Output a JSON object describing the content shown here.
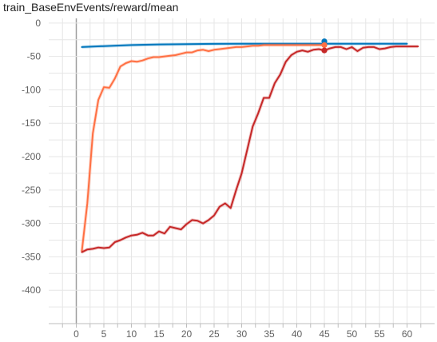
{
  "chart_data": {
    "type": "line",
    "title": "train_BaseEnvEvents/reward/mean",
    "xlabel": "",
    "ylabel": "",
    "xlim": [
      -5,
      65
    ],
    "ylim": [
      -450,
      7
    ],
    "x_ticks": [
      "0",
      "5",
      "10",
      "15",
      "20",
      "25",
      "30",
      "35",
      "40",
      "45",
      "50",
      "55",
      "60"
    ],
    "y_ticks": [
      "0",
      "-50",
      "-100",
      "-150",
      "-200",
      "-250",
      "-300",
      "-350",
      "-400"
    ],
    "grid": true,
    "series": [
      {
        "color": "#0277bd",
        "x": [
          1,
          5,
          10,
          15,
          20,
          25,
          30,
          35,
          40,
          45,
          50,
          55,
          60
        ],
        "y": [
          -36,
          -34.5,
          -33,
          -32,
          -31.5,
          -31.2,
          -31,
          -31,
          -31,
          -31,
          -31,
          -31,
          -31
        ]
      },
      {
        "color": "#ff7043",
        "x": [
          1,
          2,
          3,
          4,
          5,
          6,
          7,
          8,
          9,
          10,
          11,
          12,
          13,
          14,
          15,
          16,
          17,
          18,
          19,
          20,
          21,
          22,
          23,
          24,
          25,
          26,
          27,
          28,
          29,
          30,
          31,
          32,
          33,
          34,
          35,
          36,
          37,
          38,
          39,
          40,
          41,
          42,
          43,
          44,
          45
        ],
        "y": [
          -342,
          -270,
          -165,
          -115,
          -96,
          -97,
          -83,
          -65,
          -60,
          -57,
          -58,
          -56,
          -53,
          -51,
          -51,
          -50,
          -49,
          -48,
          -46,
          -44,
          -44,
          -41,
          -40,
          -42,
          -40,
          -39,
          -38,
          -37,
          -36,
          -36,
          -35,
          -34,
          -34,
          -33,
          -33,
          -33,
          -33,
          -33,
          -33,
          -33,
          -33,
          -33,
          -33,
          -33,
          -33
        ]
      },
      {
        "color": "#c62828",
        "x": [
          1,
          2,
          3,
          4,
          5,
          6,
          7,
          8,
          9,
          10,
          11,
          12,
          13,
          14,
          15,
          16,
          17,
          18,
          19,
          20,
          21,
          22,
          23,
          24,
          25,
          26,
          27,
          28,
          29,
          30,
          31,
          32,
          33,
          34,
          35,
          36,
          37,
          38,
          39,
          40,
          41,
          42,
          43,
          44,
          45,
          46,
          47,
          48,
          49,
          50,
          51,
          52,
          53,
          54,
          55,
          56,
          57,
          58,
          59,
          60,
          61,
          62
        ],
        "y": [
          -343,
          -339,
          -338,
          -336,
          -337,
          -336,
          -328,
          -325,
          -321,
          -318,
          -317,
          -314,
          -318,
          -318,
          -312,
          -315,
          -305,
          -307,
          -309,
          -301,
          -295,
          -296,
          -300,
          -295,
          -288,
          -275,
          -270,
          -277,
          -250,
          -225,
          -190,
          -155,
          -135,
          -112,
          -112,
          -90,
          -77,
          -58,
          -48,
          -43,
          -41,
          -43,
          -40,
          -39,
          -41,
          -38,
          -36,
          -36,
          -39,
          -36,
          -42,
          -37,
          -36,
          -36,
          -39,
          -38,
          -36,
          -35,
          -35,
          -35,
          -35,
          -35
        ]
      }
    ]
  }
}
